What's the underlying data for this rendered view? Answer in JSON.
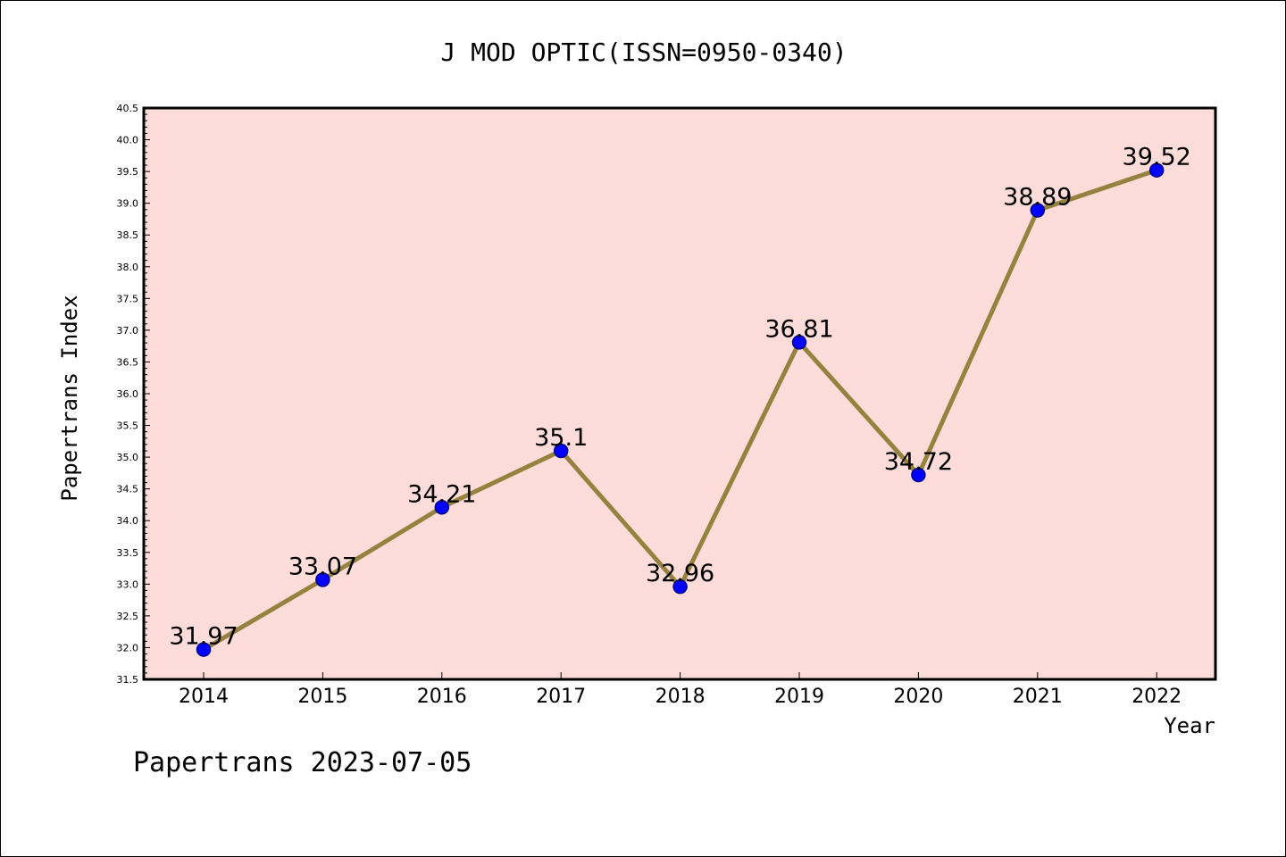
{
  "chart_data": {
    "type": "line",
    "title": "J MOD OPTIC(ISSN=0950-0340)",
    "xlabel": "Year",
    "ylabel": "Papertrans Index",
    "footer": "Papertrans 2023-07-05",
    "x": [
      "2014",
      "2015",
      "2016",
      "2017",
      "2018",
      "2019",
      "2020",
      "2021",
      "2022"
    ],
    "values": [
      31.97,
      33.07,
      34.21,
      35.1,
      32.96,
      36.81,
      34.72,
      38.89,
      39.52
    ],
    "data_labels": [
      "31.97",
      "33.07",
      "34.21",
      "35.1",
      "32.96",
      "36.81",
      "34.72",
      "38.89",
      "39.52"
    ],
    "ylim": [
      31.5,
      40.5
    ],
    "yticks": [
      "31.5",
      "32.0",
      "32.5",
      "33.0",
      "33.5",
      "34.0",
      "34.5",
      "35.0",
      "35.5",
      "36.0",
      "36.5",
      "37.0",
      "37.5",
      "38.0",
      "38.5",
      "39.0",
      "39.5",
      "40.0",
      "40.5"
    ],
    "grid": false,
    "colors": {
      "plot_background": "#fddcd9",
      "line": "#95823e",
      "marker": "#0000ff",
      "marker_edge": "#00008b",
      "text": "#000000"
    }
  }
}
